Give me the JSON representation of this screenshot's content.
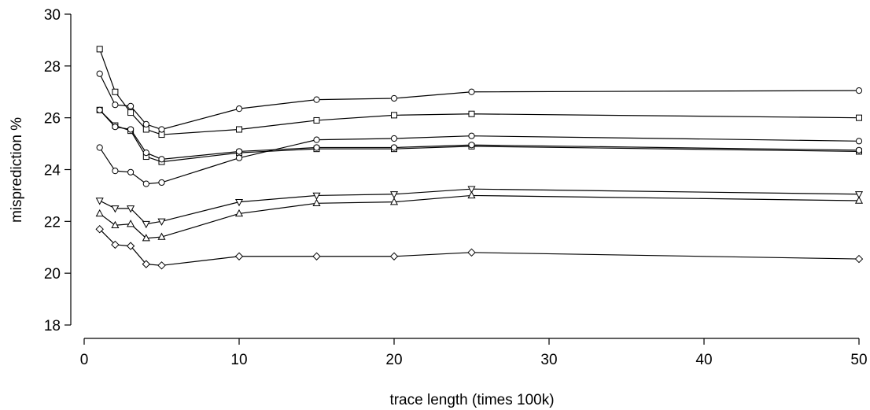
{
  "chart_data": {
    "type": "line",
    "title": "",
    "xlabel": "trace length (times 100k)",
    "ylabel": "misprediction %",
    "xlim": [
      0,
      50
    ],
    "ylim": [
      18,
      30
    ],
    "xticks": [
      0,
      10,
      20,
      30,
      40,
      50
    ],
    "yticks": [
      18,
      20,
      22,
      24,
      26,
      28,
      30
    ],
    "grid": false,
    "legend": "none",
    "x": [
      1,
      2,
      3,
      4,
      5,
      10,
      15,
      20,
      25,
      50
    ],
    "series": [
      {
        "marker": "square",
        "values": [
          28.65,
          27.0,
          26.2,
          25.55,
          25.35,
          25.55,
          25.9,
          26.1,
          26.15,
          26.0
        ]
      },
      {
        "marker": "circle",
        "values": [
          27.7,
          26.5,
          26.45,
          25.75,
          25.55,
          26.35,
          26.7,
          26.75,
          27.0,
          27.05
        ]
      },
      {
        "marker": "square",
        "values": [
          26.3,
          25.7,
          25.5,
          24.5,
          24.3,
          24.65,
          24.8,
          24.8,
          24.9,
          24.7
        ]
      },
      {
        "marker": "circle",
        "values": [
          26.3,
          25.65,
          25.55,
          24.65,
          24.4,
          24.7,
          24.85,
          24.85,
          24.95,
          24.75
        ]
      },
      {
        "marker": "circle",
        "values": [
          24.85,
          23.95,
          23.9,
          23.45,
          23.5,
          24.45,
          25.15,
          25.2,
          25.3,
          25.1
        ]
      },
      {
        "marker": "triangle-down",
        "values": [
          22.8,
          22.5,
          22.5,
          21.9,
          22.0,
          22.75,
          23.0,
          23.05,
          23.25,
          23.05
        ]
      },
      {
        "marker": "triangle-up",
        "values": [
          22.3,
          21.85,
          21.9,
          21.35,
          21.4,
          22.3,
          22.7,
          22.75,
          23.0,
          22.8
        ]
      },
      {
        "marker": "diamond",
        "values": [
          21.7,
          21.1,
          21.05,
          20.35,
          20.3,
          20.65,
          20.65,
          20.65,
          20.8,
          20.55
        ]
      }
    ]
  }
}
